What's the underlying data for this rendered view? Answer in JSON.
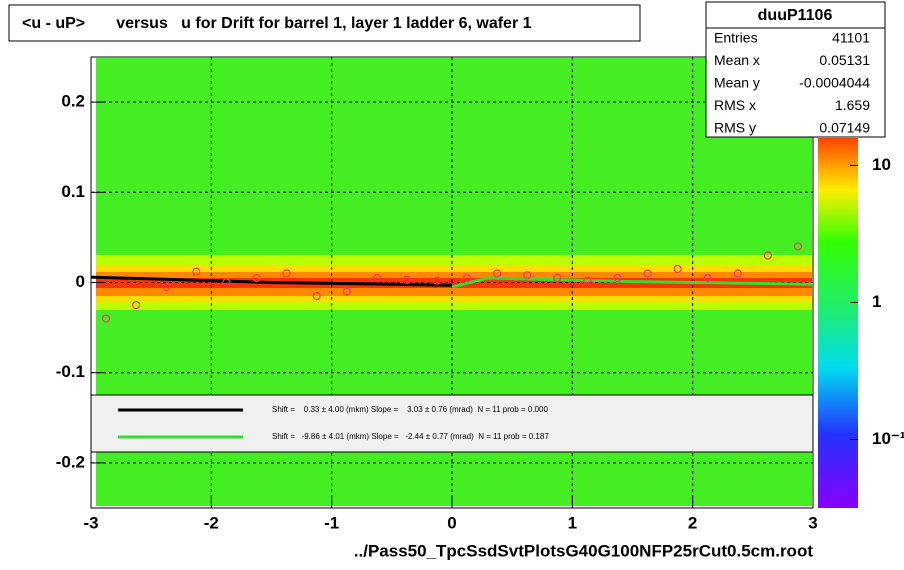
{
  "chart_data": {
    "type": "profile2d",
    "title": "<u - uP>       versus   u for Drift for barrel 1, layer 1 ladder 6, wafer 1",
    "x_label": "../Pass50_TpcSsdSvtPlotsG40G100NFP25rCut0.5cm.root",
    "xlim": [
      -3,
      3
    ],
    "ylim": [
      -0.25,
      0.25
    ],
    "xticks": [
      -3,
      -2,
      -1,
      0,
      1,
      2,
      3
    ],
    "yticks": [
      -0.2,
      -0.1,
      0,
      0.1,
      0.2
    ],
    "grid": true,
    "z_log": true,
    "zticks": [
      {
        "value": 10,
        "label": "10"
      },
      {
        "value": 1,
        "label": "1"
      },
      {
        "value": 0.1,
        "label": "10⁻¹"
      }
    ],
    "stats": {
      "name": "duuP1106",
      "rows": [
        {
          "label": "Entries",
          "value": "41101"
        },
        {
          "label": "Mean x",
          "value": "0.05131"
        },
        {
          "label": "Mean y",
          "value": "-0.0004044"
        },
        {
          "label": "RMS x",
          "value": "1.659"
        },
        {
          "label": "RMS y",
          "value": "0.07149"
        }
      ]
    },
    "profile": {
      "color": "#ff3366",
      "x": [
        -2.875,
        -2.625,
        -2.375,
        -2.125,
        -1.875,
        -1.625,
        -1.375,
        -1.125,
        -0.875,
        -0.625,
        -0.375,
        -0.125,
        0.125,
        0.375,
        0.625,
        0.875,
        1.125,
        1.375,
        1.625,
        1.875,
        2.125,
        2.375,
        2.625,
        2.875
      ],
      "values": [
        -0.04,
        -0.025,
        -0.005,
        0.012,
        0.0,
        0.005,
        0.01,
        -0.015,
        -0.01,
        0.005,
        0.003,
        0.002,
        0.005,
        0.01,
        0.008,
        0.005,
        0.002,
        0.005,
        0.01,
        0.015,
        0.005,
        0.01,
        0.03,
        0.04
      ]
    },
    "series": [
      {
        "name": "Shift =    0.33 ± 4.00 (mkm) Slope =    3.03 ± 0.76 (mrad)  N = 11 prob = 0.000",
        "color": "#000000",
        "x": [
          -3,
          -1.5,
          0
        ],
        "values": [
          0.006,
          0.0,
          -0.003
        ]
      },
      {
        "name": "Shift =   -9.86 ± 4.01 (mkm) Slope =   -2.44 ± 0.77 (mrad)  N = 11 prob = 0.187",
        "color": "#33dd33",
        "x": [
          0,
          0.3,
          1.5,
          3
        ],
        "values": [
          -0.005,
          0.005,
          0.001,
          -0.002
        ]
      }
    ]
  }
}
